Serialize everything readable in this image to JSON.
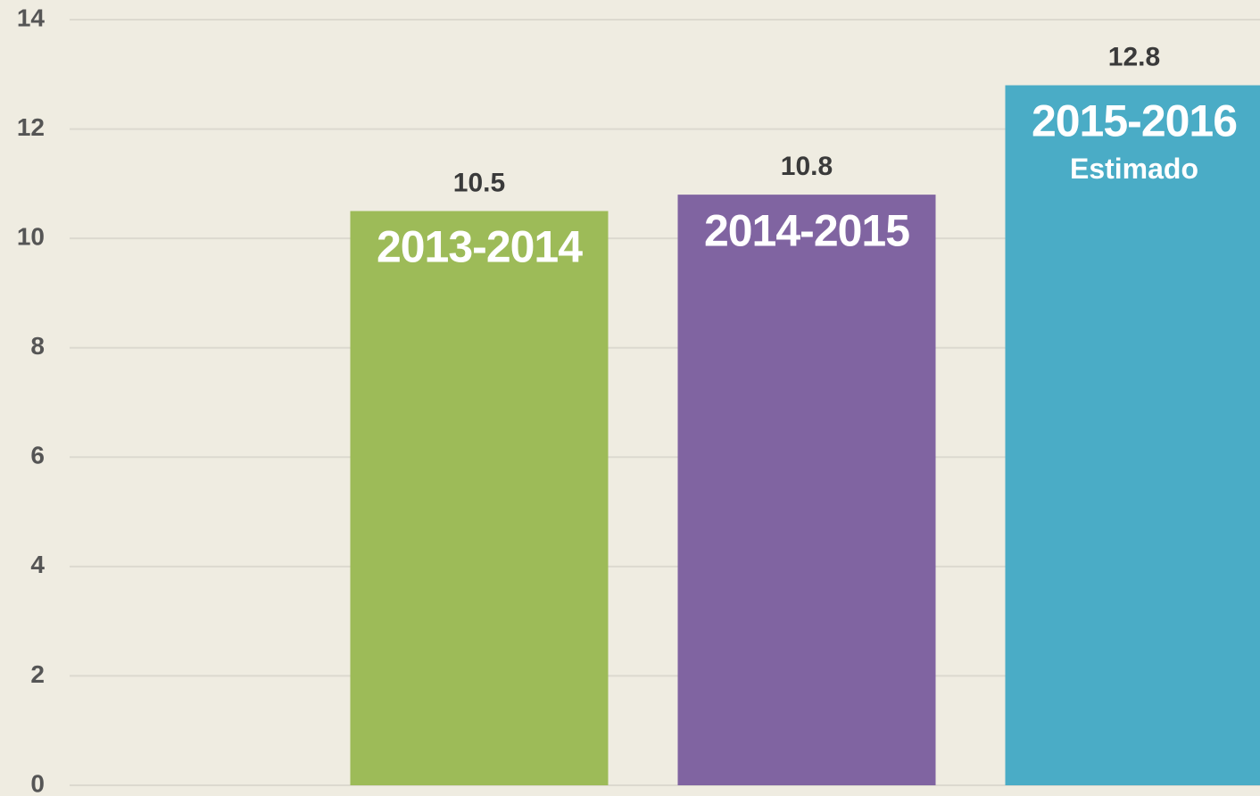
{
  "chart_data": {
    "type": "bar",
    "categories": [
      "2013-2014",
      "2014-2015",
      "2015-2016"
    ],
    "sublabels": [
      null,
      null,
      "Estimado"
    ],
    "values": [
      10.5,
      10.8,
      12.8
    ],
    "colors": [
      "#9dbb58",
      "#8064a1",
      "#4aacc6"
    ],
    "ylim": [
      0,
      14
    ],
    "yticks": [
      0,
      2,
      4,
      6,
      8,
      10,
      12,
      14
    ],
    "grid": true
  }
}
